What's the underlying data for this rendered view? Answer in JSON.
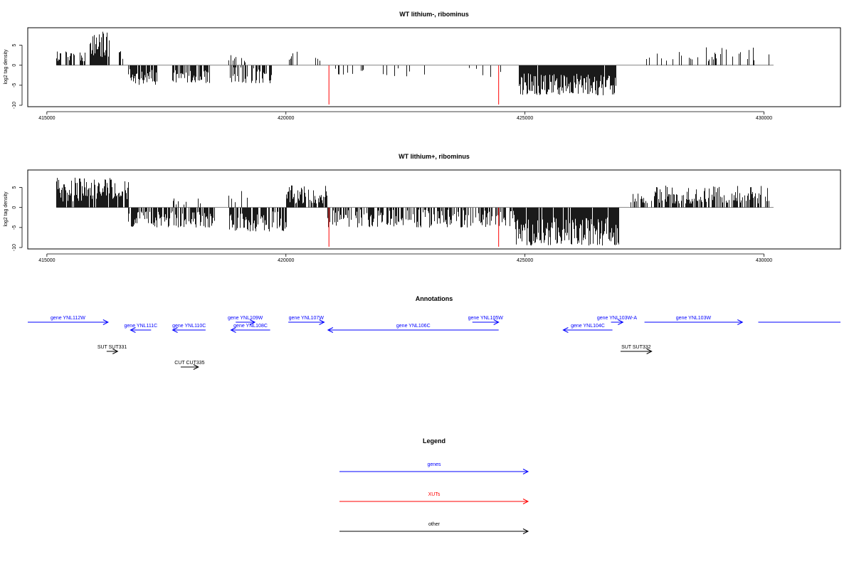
{
  "colors": {
    "gene": "#0000ff",
    "xut": "#ff0000",
    "other": "#000000"
  },
  "chart_data": [
    {
      "type": "bar",
      "title": "WT lithium-, ribominus",
      "ylabel": "log2 tag density",
      "xlim": [
        414600,
        431600
      ],
      "ylim": [
        -10,
        9
      ],
      "x_ticks": [
        415000,
        420000,
        425000,
        430000
      ],
      "x_tick_labels": [
        "415000",
        "420000",
        "425000",
        "430000"
      ],
      "y_ticks": [
        -10,
        -5,
        0,
        5
      ],
      "y_tick_labels": [
        "-10",
        "-5",
        "0",
        "5"
      ],
      "xut_marks": [
        {
          "x": 420900,
          "value": -9.8
        },
        {
          "x": 424450,
          "value": -9.8
        }
      ],
      "signal_regions": [
        {
          "start": 415200,
          "end": 415800,
          "min": 1.0,
          "max": 3.5,
          "density": 0.4
        },
        {
          "start": 415900,
          "end": 416300,
          "min": 2.0,
          "max": 8.5,
          "density": 0.95
        },
        {
          "start": 416500,
          "end": 416600,
          "min": 1.0,
          "max": 3.5,
          "density": 0.5
        },
        {
          "start": 416700,
          "end": 417300,
          "min": -5.0,
          "max": -1.0,
          "density": 0.8
        },
        {
          "start": 417600,
          "end": 418400,
          "min": -4.5,
          "max": -1.0,
          "density": 0.7
        },
        {
          "start": 418800,
          "end": 419200,
          "min": 0.5,
          "max": 2.5,
          "density": 0.3
        },
        {
          "start": 418800,
          "end": 419700,
          "min": -4.5,
          "max": -0.5,
          "density": 0.6
        },
        {
          "start": 420050,
          "end": 420250,
          "min": 1.0,
          "max": 3.5,
          "density": 0.4
        },
        {
          "start": 420600,
          "end": 420800,
          "min": 1.0,
          "max": 3.5,
          "density": 0.3
        },
        {
          "start": 421000,
          "end": 424500,
          "min": -3.0,
          "max": -0.5,
          "density": 0.08
        },
        {
          "start": 424850,
          "end": 426900,
          "min": -7.5,
          "max": -2.0,
          "density": 0.97
        },
        {
          "start": 427500,
          "end": 430100,
          "min": 1.0,
          "max": 4.5,
          "density": 0.18
        }
      ]
    },
    {
      "type": "bar",
      "title": "WT lithium+, ribominus",
      "ylabel": "log2 tag density",
      "xlim": [
        414600,
        431600
      ],
      "ylim": [
        -10,
        9
      ],
      "x_ticks": [
        415000,
        420000,
        425000,
        430000
      ],
      "x_tick_labels": [
        "415000",
        "420000",
        "425000",
        "430000"
      ],
      "y_ticks": [
        -10,
        -5,
        0,
        5
      ],
      "y_tick_labels": [
        "-10",
        "-5",
        "0",
        "5"
      ],
      "xut_marks": [
        {
          "x": 420900,
          "value": -9.8
        },
        {
          "x": 424450,
          "value": -9.8
        }
      ],
      "signal_regions": [
        {
          "start": 415200,
          "end": 416700,
          "min": 1.5,
          "max": 7.5,
          "density": 0.9
        },
        {
          "start": 416700,
          "end": 418500,
          "min": -5.0,
          "max": -1.0,
          "density": 0.7
        },
        {
          "start": 417600,
          "end": 418200,
          "min": 0.5,
          "max": 2.5,
          "density": 0.2
        },
        {
          "start": 418800,
          "end": 420000,
          "min": -6.0,
          "max": -1.0,
          "density": 0.8
        },
        {
          "start": 418800,
          "end": 419200,
          "min": 1.0,
          "max": 5.0,
          "density": 0.3
        },
        {
          "start": 420000,
          "end": 420850,
          "min": 1.0,
          "max": 5.5,
          "density": 0.85
        },
        {
          "start": 420850,
          "end": 424800,
          "min": -5.0,
          "max": -0.5,
          "density": 0.6
        },
        {
          "start": 424800,
          "end": 426950,
          "min": -9.5,
          "max": -2.5,
          "density": 0.97
        },
        {
          "start": 427100,
          "end": 427700,
          "min": 1.0,
          "max": 3.5,
          "density": 0.3
        },
        {
          "start": 427700,
          "end": 430100,
          "min": 1.0,
          "max": 5.5,
          "density": 0.75
        }
      ]
    }
  ],
  "annotations": {
    "title": "Annotations",
    "features": [
      {
        "label": "gene YNL112W",
        "start": 414600,
        "end": 416280,
        "strand": "+",
        "kind": "gene",
        "row": 0
      },
      {
        "label": "gene YNL111C",
        "start": 416750,
        "end": 417180,
        "strand": "-",
        "kind": "gene",
        "row": 1
      },
      {
        "label": "gene YNL110C",
        "start": 417630,
        "end": 418320,
        "strand": "-",
        "kind": "gene",
        "row": 1
      },
      {
        "label": "gene YNL109W",
        "start": 418950,
        "end": 419350,
        "strand": "+",
        "kind": "gene",
        "row": 0
      },
      {
        "label": "gene YNL108C",
        "start": 418850,
        "end": 419670,
        "strand": "-",
        "kind": "gene",
        "row": 1
      },
      {
        "label": "gene YNL107W",
        "start": 420050,
        "end": 420800,
        "strand": "+",
        "kind": "gene",
        "row": 0
      },
      {
        "label": "gene YNL106C",
        "start": 420880,
        "end": 424450,
        "strand": "-",
        "kind": "gene",
        "row": 1
      },
      {
        "label": "gene YNL105W",
        "start": 423900,
        "end": 424450,
        "strand": "+",
        "kind": "gene",
        "row": 0
      },
      {
        "label": "gene YNL104C",
        "start": 425800,
        "end": 426830,
        "strand": "-",
        "kind": "gene",
        "row": 1
      },
      {
        "label": "gene YNL103W-A",
        "start": 426800,
        "end": 427050,
        "strand": "+",
        "kind": "gene",
        "row": 0
      },
      {
        "label": "gene YNL103W",
        "start": 427500,
        "end": 429550,
        "strand": "+",
        "kind": "gene",
        "row": 0
      },
      {
        "label": "",
        "start": 429880,
        "end": 431600,
        "strand": "none",
        "kind": "gene",
        "row": 0
      },
      {
        "label": "SUT SUT331",
        "start": 416250,
        "end": 416480,
        "strand": "+",
        "kind": "other",
        "row": 2
      },
      {
        "label": "CUT CUT335",
        "start": 417800,
        "end": 418170,
        "strand": "+",
        "kind": "other",
        "row": 3
      },
      {
        "label": "SUT SUT332",
        "start": 427000,
        "end": 427650,
        "strand": "+",
        "kind": "other",
        "row": 2
      }
    ]
  },
  "legend": {
    "title": "Legend",
    "entries": [
      {
        "label": "genes",
        "kind": "gene"
      },
      {
        "label": "XUTs",
        "kind": "xut"
      },
      {
        "label": "other",
        "kind": "other"
      }
    ]
  }
}
